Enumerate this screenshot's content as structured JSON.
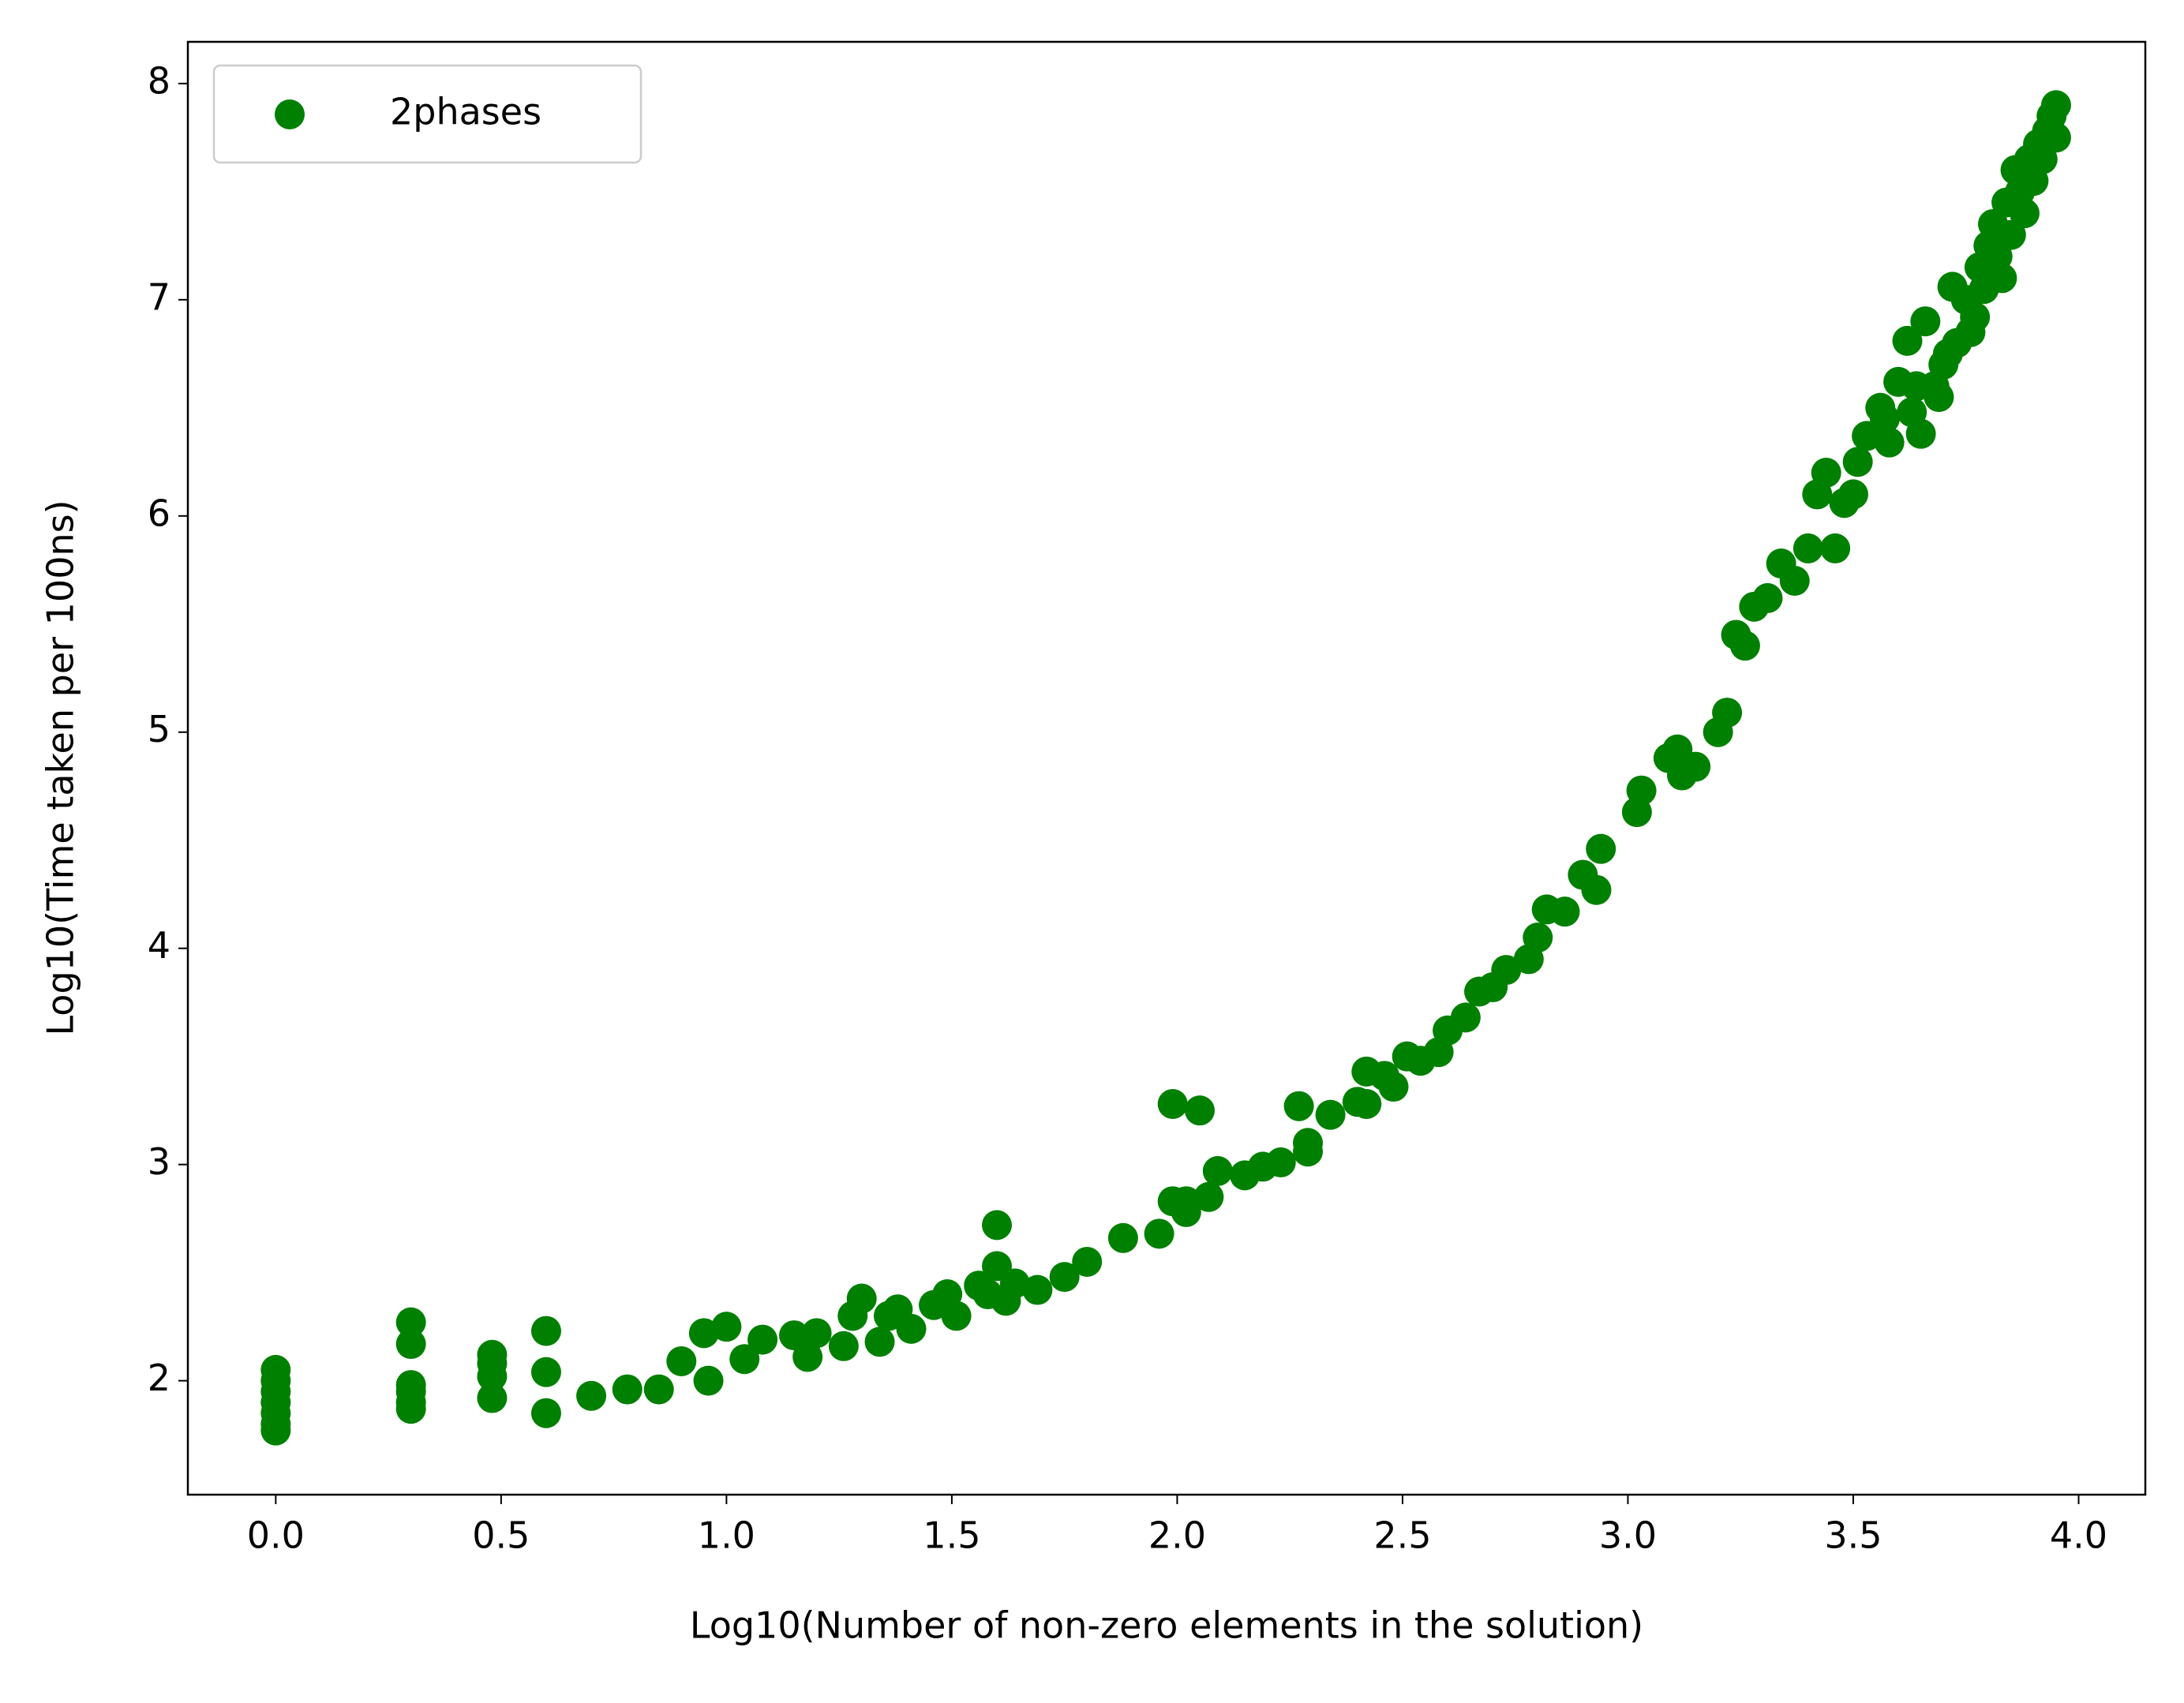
{
  "chart_data": {
    "type": "scatter",
    "xlabel": "Log10(Number of non-zero elements in the solution)",
    "ylabel": "Log10(Time taken per 100ns)",
    "xlim": [
      -0.195,
      4.148
    ],
    "ylim": [
      1.473,
      8.193
    ],
    "xticks": [
      {
        "value": 0,
        "label": "0.0"
      },
      0.5,
      {
        "value": 1,
        "label": "1.0"
      },
      1.5,
      {
        "value": 2,
        "label": "2.0"
      },
      2.5,
      {
        "value": 3,
        "label": "3.0"
      },
      3.5,
      {
        "value": 4,
        "label": "4.0"
      }
    ],
    "yticks": [
      2,
      3,
      4,
      5,
      6,
      7,
      8
    ],
    "legend": "upper left",
    "series": [
      {
        "name": "2phases",
        "color": "#008000",
        "x": [
          0,
          0,
          0,
          0,
          0,
          0,
          0,
          0.3,
          0.3,
          0.3,
          0.3,
          0.3,
          0.3,
          0.48,
          0.48,
          0.48,
          0.48,
          0.6,
          0.6,
          0.6,
          0.7,
          0.78,
          0.85,
          0.9,
          0.95,
          0.96,
          1.0,
          1.04,
          1.08,
          1.15,
          1.18,
          1.2,
          1.26,
          1.28,
          1.3,
          1.34,
          1.36,
          1.38,
          1.41,
          1.46,
          1.49,
          1.51,
          1.56,
          1.58,
          1.6,
          1.6,
          1.62,
          1.64,
          1.69,
          1.75,
          1.8,
          1.88,
          1.96,
          1.99,
          1.99,
          2.02,
          2.02,
          2.05,
          2.07,
          2.09,
          2.15,
          2.19,
          2.23,
          2.27,
          2.29,
          2.29,
          2.34,
          2.4,
          2.42,
          2.42,
          2.46,
          2.48,
          2.51,
          2.54,
          2.58,
          2.6,
          2.64,
          2.67,
          2.7,
          2.73,
          2.78,
          2.8,
          2.82,
          2.86,
          2.9,
          2.93,
          2.94,
          3.02,
          3.03,
          3.09,
          3.11,
          3.12,
          3.15,
          3.2,
          3.22,
          3.24,
          3.26,
          3.28,
          3.31,
          3.34,
          3.37,
          3.4,
          3.46,
          3.42,
          3.44,
          3.48,
          3.5,
          3.51,
          3.53,
          3.56,
          3.58,
          3.6,
          3.62,
          3.63,
          3.65,
          3.66,
          3.68,
          3.7,
          3.72,
          3.73,
          3.75,
          3.77,
          3.78,
          3.8,
          3.81,
          3.83,
          3.84,
          3.85,
          3.86,
          3.87,
          3.88,
          3.89,
          3.9,
          3.91,
          3.92,
          3.93,
          3.94,
          3.95,
          3.95,
          3.82,
          3.79,
          3.76,
          3.71,
          3.69,
          3.64,
          3.57
        ],
        "values": [
          2.05,
          2.0,
          1.95,
          1.9,
          1.85,
          1.8,
          1.77,
          2.27,
          2.17,
          1.98,
          1.95,
          1.9,
          1.87,
          2.12,
          2.08,
          2.02,
          1.92,
          2.23,
          2.04,
          1.85,
          1.93,
          1.96,
          1.96,
          2.09,
          2.22,
          2.0,
          2.25,
          2.1,
          2.19,
          2.21,
          2.11,
          2.22,
          2.16,
          2.3,
          2.38,
          2.18,
          2.3,
          2.33,
          2.24,
          2.35,
          2.4,
          2.3,
          2.44,
          2.4,
          2.72,
          2.53,
          2.37,
          2.45,
          2.42,
          2.48,
          2.55,
          2.66,
          2.68,
          2.83,
          3.28,
          2.83,
          2.78,
          3.25,
          2.85,
          2.97,
          2.95,
          2.99,
          3.01,
          3.27,
          3.1,
          3.06,
          3.23,
          3.29,
          3.43,
          3.28,
          3.41,
          3.36,
          3.5,
          3.48,
          3.52,
          3.62,
          3.68,
          3.8,
          3.82,
          3.9,
          3.95,
          4.05,
          4.18,
          4.17,
          4.34,
          4.27,
          4.46,
          4.63,
          4.73,
          4.88,
          4.92,
          4.8,
          4.84,
          5.0,
          5.09,
          5.45,
          5.4,
          5.58,
          5.62,
          5.78,
          5.7,
          5.85,
          5.85,
          6.1,
          6.2,
          6.06,
          6.1,
          6.25,
          6.37,
          6.5,
          6.34,
          6.62,
          6.81,
          6.48,
          6.38,
          6.9,
          6.6,
          6.7,
          7.06,
          6.8,
          7.0,
          6.92,
          7.15,
          7.25,
          7.35,
          7.1,
          7.45,
          7.3,
          7.6,
          7.5,
          7.4,
          7.65,
          7.55,
          7.72,
          7.65,
          7.78,
          7.85,
          7.9,
          7.75,
          7.2,
          7.05,
          6.85,
          6.75,
          6.55,
          6.6,
          6.45
        ]
      }
    ]
  }
}
